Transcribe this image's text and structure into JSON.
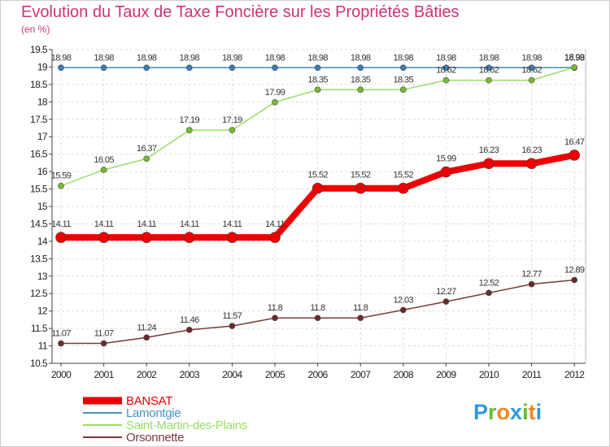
{
  "chart_data": {
    "type": "line",
    "title": "Evolution du Taux de Taxe Foncière sur les Propriétés Bâties",
    "subtitle": "(en %)",
    "xlabel": "",
    "ylabel": "",
    "x": [
      "2000",
      "2001",
      "2002",
      "2003",
      "2004",
      "2005",
      "2006",
      "2007",
      "2008",
      "2009",
      "2010",
      "2011",
      "2012"
    ],
    "ylim": [
      10.5,
      19.5
    ],
    "yticks": [
      "10.5",
      "11",
      "11.5",
      "12",
      "12.5",
      "13",
      "13.5",
      "14",
      "14.5",
      "15",
      "15.5",
      "16",
      "16.5",
      "17",
      "17.5",
      "18",
      "18.5",
      "19",
      "19.5"
    ],
    "grid": true,
    "legend_position": "bottom-left",
    "series": [
      {
        "name": "Lamontgie",
        "color": "#4a90c0",
        "marker": "#3a7fb8",
        "labels": [
          "18.98",
          "18.98",
          "18.98",
          "18.98",
          "18.98",
          "18.98",
          "18.98",
          "18.98",
          "18.98",
          "18.98",
          "18.98",
          "18.98",
          "18.98"
        ]
      },
      {
        "name": "Saint-Martin-des-Plains",
        "color": "#99dd66",
        "marker": "#77bb33",
        "labels": [
          "15.59",
          "16.05",
          "16.37",
          "17.19",
          "17.19",
          "17.99",
          "18.35",
          "18.35",
          "18.35",
          "18.62",
          "18.62",
          "18.62",
          "18.99"
        ]
      },
      {
        "name": "Orsonnette",
        "color": "#7a3a3a",
        "marker": "#6b2a2a",
        "labels": [
          "11.07",
          "11.07",
          "11.24",
          "11.46",
          "11.57",
          "11.8",
          "11.8",
          "11.8",
          "12.03",
          "12.27",
          "12.52",
          "12.77",
          "12.89"
        ]
      },
      {
        "name": "BANSAT",
        "color": "#ee0000",
        "marker": "#ee0000",
        "labels": [
          "14.11",
          "14.11",
          "14.11",
          "14.11",
          "14.11",
          "14.11",
          "15.52",
          "15.52",
          "15.52",
          "15.99",
          "16.23",
          "16.23",
          "16.47"
        ]
      }
    ],
    "legend_order": [
      "BANSAT",
      "Lamontgie",
      "Saint-Martin-des-Plains",
      "Orsonnette"
    ]
  },
  "logo": {
    "letters": [
      "P",
      "r",
      "o",
      "x",
      "i",
      "t",
      "i"
    ],
    "colors": [
      "#3399dd",
      "#66bb33",
      "#ee8822",
      "#3399dd",
      "#66bb33",
      "#ee8822",
      "#3399dd"
    ]
  }
}
